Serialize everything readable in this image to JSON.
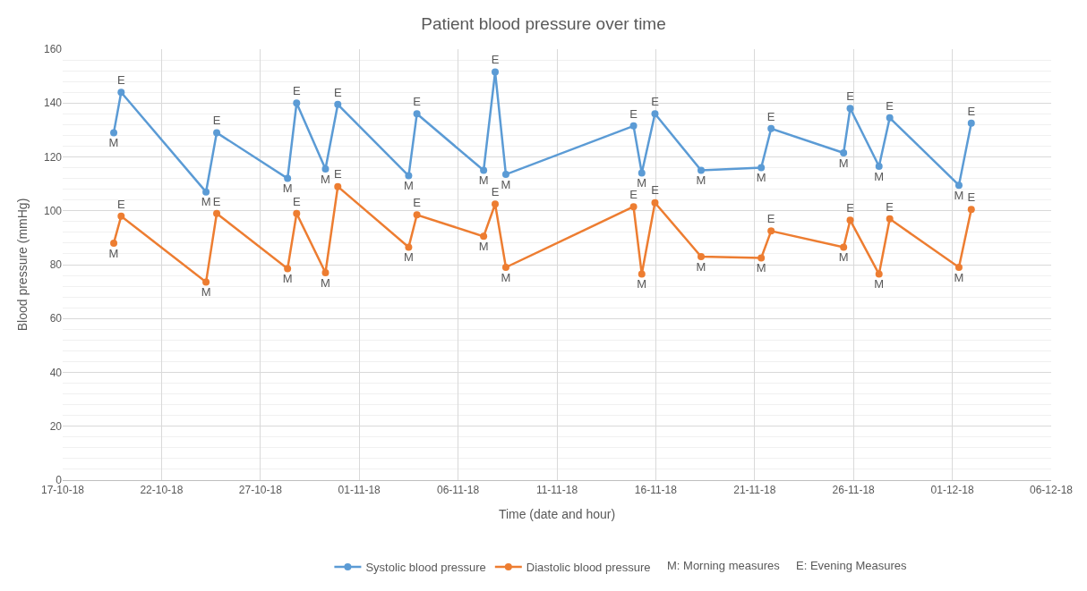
{
  "chart_data": {
    "type": "line",
    "title": "Patient blood pressure over time",
    "xlabel": "Time (date and hour)",
    "ylabel": "Blood pressure (mmHg)",
    "x": [
      "--10-19T14:00",
      "--10-19T23:00",
      "--10-24T06:00",
      "--10-24T19:00",
      "--10-28T09:00",
      "--10-28T20:00",
      "--10-30T07:00",
      "--10-30T22:00",
      "--11-03T12:00",
      "--11-03T22:00",
      "--11-07T07:00",
      "--11-07T21:00",
      "--11-08T10:00",
      "--11-14T21:00",
      "--11-15T07:00",
      "--11-15T23:00",
      "--11-18T07:00",
      "--11-21T08:00",
      "--11-21T20:00",
      "--11-25T12:00",
      "--11-25T20:00",
      "--11-27T07:00",
      "--11-27T20:00",
      "--12-01T08:00",
      "--12-01T23:00"
    ],
    "series": [
      {
        "name": "Systolic blood pressure",
        "color": "#5b9bd5",
        "values": [
          129,
          144,
          107,
          129,
          112,
          140,
          115.5,
          139.5,
          113,
          136,
          115,
          151.5,
          113.5,
          131.5,
          114,
          136,
          115,
          116,
          130.5,
          121.5,
          138,
          116.5,
          134.5,
          109.5,
          132.5
        ],
        "value_labels": [
          "M",
          "E",
          "M",
          "E",
          "M",
          "E",
          "M",
          "E",
          "M",
          "E",
          "M",
          "E",
          "M",
          "E",
          "M",
          "E",
          "M",
          "M",
          "E",
          "M",
          "E",
          "M",
          "E",
          "M",
          "E"
        ]
      },
      {
        "name": "Diastolic blood pressure",
        "color": "#ed7d31",
        "values": [
          88,
          98,
          73.5,
          99,
          78.5,
          99,
          77,
          109,
          86.5,
          98.5,
          90.5,
          102.5,
          79,
          101.5,
          76.5,
          103,
          83,
          82.5,
          92.5,
          86.5,
          96.5,
          76.5,
          97,
          79,
          100.5
        ],
        "value_labels": [
          "M",
          "E",
          "M",
          "E",
          "M",
          "E",
          "M",
          "E",
          "M",
          "E",
          "M",
          "E",
          "M",
          "E",
          "M",
          "E",
          "M",
          "M",
          "E",
          "M",
          "E",
          "M",
          "E",
          "M",
          "E"
        ]
      }
    ],
    "annotations": [
      "M: Morning measures",
      "E: Evening Measures"
    ],
    "xlim": [
      "--10-17",
      "--12-06"
    ],
    "xticks": [
      {
        "value": "--10-17",
        "label": "17-10-18"
      },
      {
        "value": "--10-22",
        "label": "22-10-18"
      },
      {
        "value": "--10-27",
        "label": "27-10-18"
      },
      {
        "value": "--11-01",
        "label": "01-11-18"
      },
      {
        "value": "--11-06",
        "label": "06-11-18"
      },
      {
        "value": "--11-11",
        "label": "11-11-18"
      },
      {
        "value": "--11-16",
        "label": "16-11-18"
      },
      {
        "value": "--11-21",
        "label": "21-11-18"
      },
      {
        "value": "--11-26",
        "label": "26-11-18"
      },
      {
        "value": "--12-01",
        "label": "01-12-18"
      },
      {
        "value": "--12-06",
        "label": "06-12-18"
      }
    ],
    "ylim": [
      0,
      160
    ],
    "yticks": [
      0,
      20,
      40,
      60,
      80,
      100,
      120,
      140,
      160
    ],
    "grid": true,
    "legend": "bottom",
    "marker": "circle",
    "line_style": "solid"
  }
}
